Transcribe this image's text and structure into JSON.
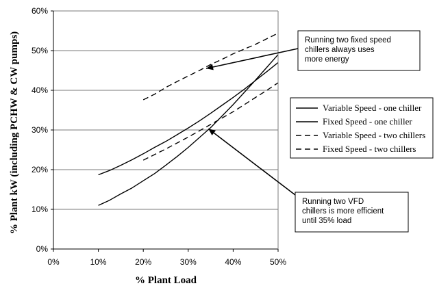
{
  "chart_data": {
    "type": "line",
    "xlabel": "% Plant Load",
    "ylabel": "% Plant kW (including PCHW & CW pumps)",
    "xlim": [
      0,
      50
    ],
    "ylim": [
      0,
      60
    ],
    "x_ticks": [
      "0%",
      "10%",
      "20%",
      "30%",
      "40%",
      "50%"
    ],
    "y_ticks": [
      "0%",
      "10%",
      "20%",
      "30%",
      "40%",
      "50%",
      "60%"
    ],
    "grid": "horizontal",
    "legend_position": "right",
    "series": [
      {
        "name": "Variable Speed - one chiller",
        "style": "solid",
        "x": [
          10,
          12.5,
          15,
          17.5,
          20,
          22.5,
          25,
          27.5,
          30,
          32.5,
          35,
          37.5,
          40,
          42.5,
          45,
          47.5,
          50
        ],
        "y": [
          18.7,
          19.8,
          21.1,
          22.5,
          24.0,
          25.6,
          27.1,
          28.8,
          30.5,
          32.3,
          34.2,
          36.2,
          38.2,
          40.3,
          42.5,
          44.7,
          47.0
        ]
      },
      {
        "name": "Fixed Speed - one chiller",
        "style": "solid",
        "x": [
          10,
          12.5,
          15,
          17.5,
          20,
          22.5,
          25,
          27.5,
          30,
          32.5,
          35,
          37.5,
          40,
          42.5,
          45,
          47.5,
          50
        ],
        "y": [
          11.0,
          12.3,
          13.9,
          15.4,
          17.2,
          19.0,
          21.1,
          23.3,
          25.6,
          28.1,
          30.6,
          33.5,
          36.4,
          39.5,
          42.6,
          45.8,
          49.0
        ]
      },
      {
        "name": "Variable Speed - two chillers",
        "style": "dashed",
        "x": [
          20,
          22.5,
          25,
          27.5,
          30,
          32.5,
          35,
          37.5,
          40,
          42.5,
          45,
          47.5,
          50
        ],
        "y": [
          22.4,
          23.8,
          25.2,
          26.7,
          28.2,
          29.8,
          31.4,
          33.0,
          34.6,
          36.4,
          38.2,
          40.0,
          41.9
        ]
      },
      {
        "name": "Fixed Speed - two chillers",
        "style": "dashed",
        "x": [
          20,
          22.5,
          25,
          27.5,
          30,
          32.5,
          35,
          37.5,
          40,
          42.5,
          45,
          47.5,
          50
        ],
        "y": [
          37.6,
          39.0,
          40.7,
          42.2,
          43.6,
          45.0,
          46.5,
          47.8,
          49.2,
          50.4,
          51.6,
          53.0,
          54.4
        ]
      }
    ],
    "annotations": [
      {
        "lines": [
          "Running two fixed speed",
          "chillers always uses",
          "more energy"
        ],
        "points_to": {
          "x": 34,
          "y": 45.5
        }
      },
      {
        "lines": [
          "Running two VFD",
          "chillers is more efficient",
          "until 35% load"
        ],
        "points_to": {
          "x": 34.5,
          "y": 30.3
        }
      }
    ]
  }
}
